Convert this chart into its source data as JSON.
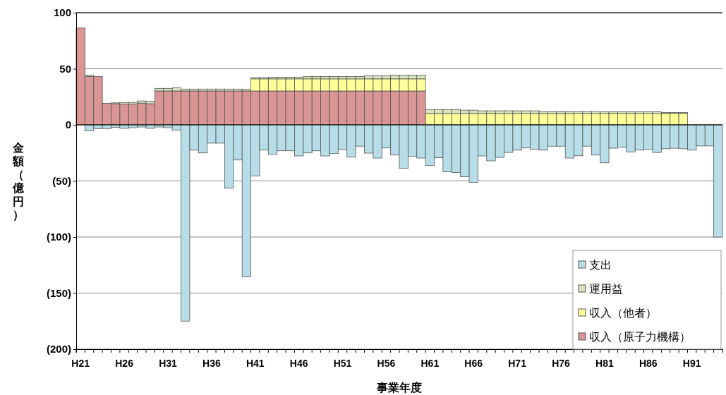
{
  "chart_data": {
    "type": "bar",
    "stacked": true,
    "xlabel": "事業年度",
    "ylabel": "金額（億円）",
    "categories": [
      "H21",
      null,
      null,
      null,
      null,
      "H26",
      null,
      null,
      null,
      null,
      "H31",
      null,
      null,
      null,
      null,
      "H36",
      null,
      null,
      null,
      null,
      "H41",
      null,
      null,
      null,
      null,
      "H46",
      null,
      null,
      null,
      null,
      "H51",
      null,
      null,
      null,
      null,
      "H56",
      null,
      null,
      null,
      null,
      "H61",
      null,
      null,
      null,
      null,
      "H66",
      null,
      null,
      null,
      null,
      "H71",
      null,
      null,
      null,
      null,
      "H76",
      null,
      null,
      null,
      null,
      "H81",
      null,
      null,
      null,
      null,
      "H86",
      null,
      null,
      null,
      null,
      "H91",
      null,
      null,
      null
    ],
    "ylim": [
      -200,
      100
    ],
    "yticks": [
      {
        "value": -200,
        "label": "(200)"
      },
      {
        "value": -150,
        "label": "(150)"
      },
      {
        "value": -100,
        "label": "(100)"
      },
      {
        "value": -50,
        "label": "(50)"
      },
      0,
      50,
      100
    ],
    "grid": "y",
    "legend": "bottom right",
    "series": [
      {
        "name": "収入（原子力機構）",
        "color": "#d99694",
        "values": [
          86.3,
          43.1,
          43.1,
          19.2,
          18.8,
          18.5,
          18.5,
          19.4,
          18.8,
          30.2,
          30.2,
          30.2,
          30.2,
          30.2,
          30.2,
          30.2,
          30.2,
          30.2,
          30.2,
          30.2,
          30.2,
          30.2,
          30.2,
          30.2,
          30.2,
          30.2,
          30.2,
          30.2,
          30.2,
          30.2,
          30.2,
          30.2,
          30.2,
          30.2,
          30.2,
          30.2,
          30.2,
          30.2,
          30.2,
          30.2,
          null,
          null,
          null,
          null,
          null,
          null,
          null,
          null,
          null,
          null,
          null,
          null,
          null,
          null,
          null,
          null,
          null,
          null,
          null,
          null,
          null,
          null,
          null,
          null,
          null,
          null,
          null,
          null,
          null,
          null,
          null,
          null,
          null,
          null
        ]
      },
      {
        "name": "収入（他者）",
        "color": "#ffff99",
        "values": [
          null,
          null,
          null,
          null,
          null,
          null,
          null,
          null,
          null,
          null,
          null,
          null,
          null,
          null,
          null,
          null,
          null,
          null,
          null,
          null,
          10.8,
          10.8,
          10.8,
          10.8,
          10.8,
          10.8,
          10.8,
          10.8,
          10.8,
          10.8,
          10.8,
          10.8,
          10.8,
          10.8,
          10.8,
          10.8,
          10.8,
          10.8,
          10.8,
          10.8,
          10.2,
          10.2,
          10.2,
          10.2,
          10.2,
          10.2,
          10.2,
          10.2,
          10.2,
          10.2,
          10.2,
          10.2,
          10.2,
          10.2,
          10.2,
          10.2,
          10.2,
          10.2,
          10.2,
          10.2,
          10.2,
          10.2,
          10.2,
          10.2,
          10.2,
          10.2,
          10.2,
          10.2,
          10.2,
          10.2,
          null,
          null,
          null,
          null
        ]
      },
      {
        "name": "運用益",
        "color": "#d7e4bd",
        "values": [
          null,
          1.3,
          null,
          null,
          0.8,
          1.5,
          1.5,
          1.9,
          2.1,
          2.3,
          2.3,
          2.9,
          1.7,
          1.7,
          1.7,
          1.7,
          1.7,
          1.7,
          1.7,
          1.5,
          1.1,
          1.1,
          1.5,
          1.5,
          1.5,
          1.5,
          2.1,
          2.1,
          2.1,
          2.1,
          2.1,
          2.1,
          2.1,
          2.8,
          2.8,
          2.8,
          3.4,
          3.4,
          3.4,
          3.4,
          3.5,
          3.5,
          3.5,
          3.5,
          2.9,
          2.9,
          2.3,
          2.3,
          2.3,
          2.3,
          2.3,
          2.3,
          2.3,
          1.7,
          1.7,
          1.7,
          1.7,
          1.7,
          1.7,
          1.7,
          1.5,
          1.5,
          1.5,
          1.5,
          1.5,
          1.5,
          1.5,
          0.8,
          0.8,
          0.8,
          null,
          null,
          null,
          null
        ]
      },
      {
        "name": "支出",
        "color": "#b7dee8",
        "values": [
          null,
          -5.4,
          -3.3,
          -3.3,
          -2.3,
          -3.1,
          -2.5,
          -1.9,
          -3.1,
          -1.9,
          -2.5,
          -4.6,
          -175,
          -22.5,
          -25,
          -16.3,
          -16.3,
          -56.5,
          -31.3,
          -135.6,
          -45.6,
          -22.5,
          -26.3,
          -23.1,
          -23.1,
          -27.7,
          -25,
          -23.1,
          -27.7,
          -25.6,
          -21.9,
          -28.8,
          -19,
          -25.2,
          -29.6,
          -20.6,
          -26.9,
          -38.8,
          -28.1,
          -29.6,
          -36.3,
          -29.2,
          -41.9,
          -42.5,
          -46.3,
          -51.3,
          -27.7,
          -32.1,
          -29,
          -24.6,
          -22.5,
          -20.6,
          -21.9,
          -22.5,
          -19,
          -19,
          -29.6,
          -27.5,
          -19,
          -26.9,
          -33.8,
          -20.8,
          -20,
          -24.2,
          -22.5,
          -21.9,
          -24.6,
          -21.3,
          -20.8,
          -21.3,
          -22.5,
          -18.8,
          -18.8,
          -100
        ]
      }
    ]
  }
}
